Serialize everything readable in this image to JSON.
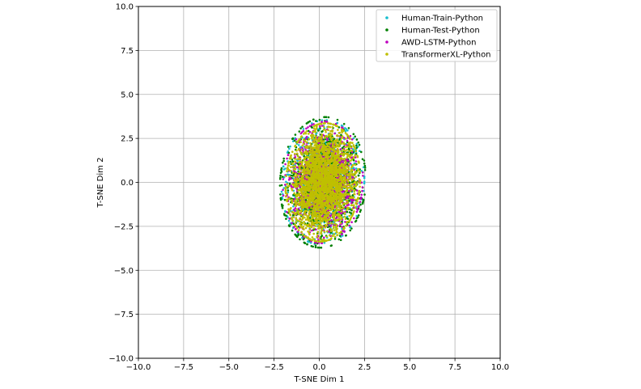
{
  "chart_data": {
    "type": "scatter",
    "title": "",
    "xlabel": "T-SNE Dim 1",
    "ylabel": "T-SNE Dim 2",
    "xlim": [
      -10.0,
      10.0
    ],
    "ylim": [
      -10.0,
      10.0
    ],
    "xticks": [
      -10.0,
      -7.5,
      -5.0,
      -2.5,
      0.0,
      2.5,
      5.0,
      7.5,
      10.0
    ],
    "yticks": [
      -10.0,
      -7.5,
      -5.0,
      -2.5,
      0.0,
      2.5,
      5.0,
      7.5,
      10.0
    ],
    "xtick_labels": [
      "−10.0",
      "−7.5",
      "−5.0",
      "−2.5",
      "0.0",
      "2.5",
      "5.0",
      "7.5",
      "10.0"
    ],
    "ytick_labels": [
      "−10.0",
      "−7.5",
      "−5.0",
      "−2.5",
      "0.0",
      "2.5",
      "5.0",
      "7.5",
      "10.0"
    ],
    "grid": true,
    "legend_position": "top-right",
    "series": [
      {
        "name": "Human-Train-Python",
        "color": "#17becf",
        "center": [
          0.2,
          0.0
        ],
        "spread": [
          1.45,
          2.05
        ],
        "rotation_deg": 25,
        "count": 900
      },
      {
        "name": "Human-Test-Python",
        "color": "#008000",
        "center": [
          0.2,
          0.0
        ],
        "spread": [
          1.5,
          2.15
        ],
        "rotation_deg": 25,
        "count": 1100
      },
      {
        "name": "AWD-LSTM-Python",
        "color": "#bf00bf",
        "center": [
          0.2,
          0.0
        ],
        "spread": [
          1.4,
          2.0
        ],
        "rotation_deg": 25,
        "count": 1000
      },
      {
        "name": "TransformerXL-Python",
        "color": "#bfbf00",
        "center": [
          0.2,
          0.0
        ],
        "spread": [
          1.3,
          1.95
        ],
        "rotation_deg": 25,
        "count": 2600
      }
    ]
  }
}
